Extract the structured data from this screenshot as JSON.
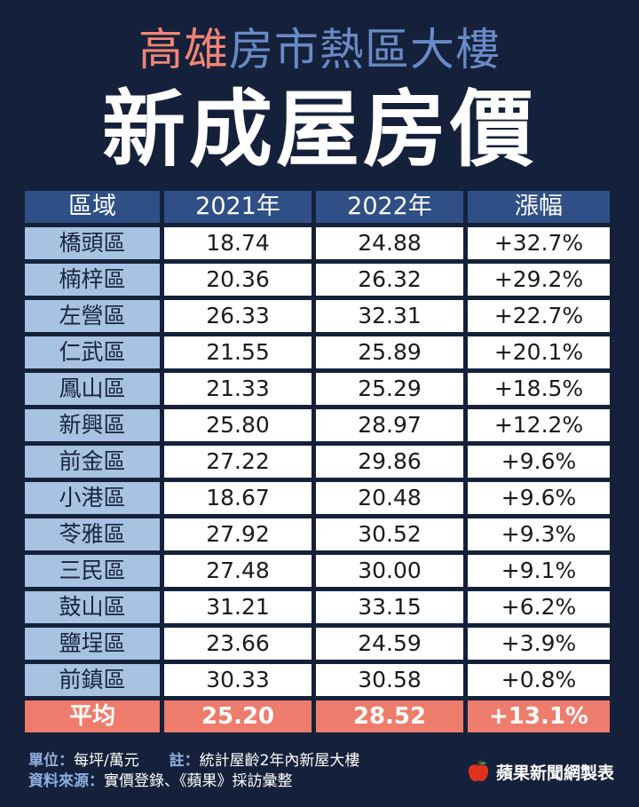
{
  "title": {
    "highlight": "高雄",
    "rest": "房市熱區大樓",
    "main": "新成屋房價"
  },
  "table": {
    "headers": [
      "區域",
      "2021年",
      "2022年",
      "漲幅"
    ],
    "rows": [
      [
        "橋頭區",
        "18.74",
        "24.88",
        "+32.7%"
      ],
      [
        "楠梓區",
        "20.36",
        "26.32",
        "+29.2%"
      ],
      [
        "左營區",
        "26.33",
        "32.31",
        "+22.7%"
      ],
      [
        "仁武區",
        "21.55",
        "25.89",
        "+20.1%"
      ],
      [
        "鳳山區",
        "21.33",
        "25.29",
        "+18.5%"
      ],
      [
        "新興區",
        "25.80",
        "28.97",
        "+12.2%"
      ],
      [
        "前金區",
        "27.22",
        "29.86",
        "+9.6%"
      ],
      [
        "小港區",
        "18.67",
        "20.48",
        "+9.6%"
      ],
      [
        "苓雅區",
        "27.92",
        "30.52",
        "+9.3%"
      ],
      [
        "三民區",
        "27.48",
        "30.00",
        "+9.1%"
      ],
      [
        "鼓山區",
        "31.21",
        "33.15",
        "+6.2%"
      ],
      [
        "鹽埕區",
        "23.66",
        "24.59",
        "+3.9%"
      ],
      [
        "前鎮區",
        "30.33",
        "30.58",
        "+0.8%"
      ]
    ],
    "average": [
      "平均",
      "25.20",
      "28.52",
      "+13.1%"
    ]
  },
  "footer": {
    "unit_label": "單位：",
    "unit_value": "每坪/萬元",
    "note_label": "註：",
    "note_value": "統計屋齡2年內新屋大樓",
    "source_label": "資料來源：",
    "source_value": "實價登錄、《蘋果》採訪彙整"
  },
  "brand": {
    "text": "蘋果新聞網製表",
    "logo_icon": "apple-logo-icon",
    "logo_color": "#e0301e"
  },
  "colors": {
    "background": "#15213a",
    "header": "#2f4f86",
    "region_cell": "#a8c3e2",
    "average_row": "#ee7c6c",
    "title_highlight": "#f08576",
    "title_rest": "#6b89c7"
  }
}
